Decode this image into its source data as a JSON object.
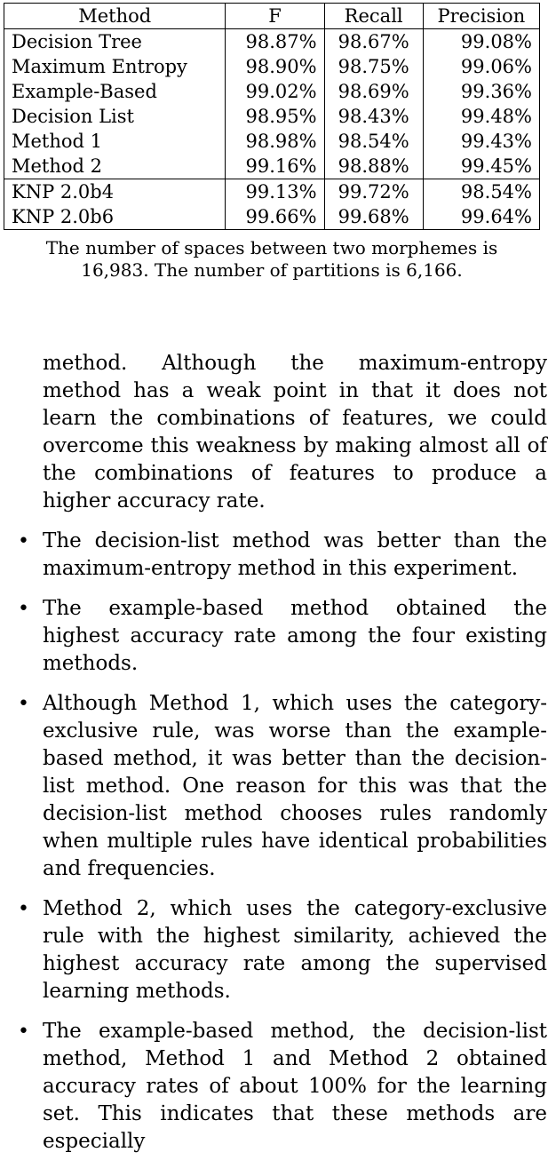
{
  "table": {
    "headers": [
      "Method",
      "F",
      "Recall",
      "Precision"
    ],
    "group1": [
      [
        "Decision Tree",
        "98.87%",
        "98.67%",
        "99.08%"
      ],
      [
        "Maximum Entropy",
        "98.90%",
        "98.75%",
        "99.06%"
      ],
      [
        "Example-Based",
        "99.02%",
        "98.69%",
        "99.36%"
      ],
      [
        "Decision List",
        "98.95%",
        "98.43%",
        "99.48%"
      ],
      [
        "Method 1",
        "98.98%",
        "98.54%",
        "99.43%"
      ],
      [
        "Method 2",
        "99.16%",
        "98.88%",
        "99.45%"
      ]
    ],
    "group2": [
      [
        "KNP 2.0b4",
        "99.13%",
        "99.72%",
        "98.54%"
      ],
      [
        "KNP 2.0b6",
        "99.66%",
        "99.68%",
        "99.64%"
      ]
    ]
  },
  "caption": {
    "line1": "The number of spaces between two morphemes is",
    "line2": "16,983. The number of partitions is 6,166."
  },
  "body": {
    "intro": "method.   Although the maximum-entropy method has a weak point in that it does not learn the combinations of features, we could overcome this weakness by making almost all of the combinations of features to produce a higher accuracy rate.",
    "bullets": [
      "The decision-list method was better than the maximum-entropy method in this experiment.",
      "The example-based method obtained the highest accuracy rate among the four existing methods.",
      "Although Method 1, which uses the category-exclusive rule, was worse than the example-based method, it was better than the decision-list method. One reason for this was that the decision-list method chooses rules randomly when multiple rules have identical probabilities and frequencies.",
      "Method 2, which uses the category-exclusive rule with the highest similarity, achieved the highest accuracy rate among the supervised learning methods.",
      "The example-based method, the decision-list method, Method 1 and Method 2 obtained accuracy rates of about 100% for the learning set. This indicates that these methods are especially"
    ],
    "bullet_symbol": "•"
  }
}
